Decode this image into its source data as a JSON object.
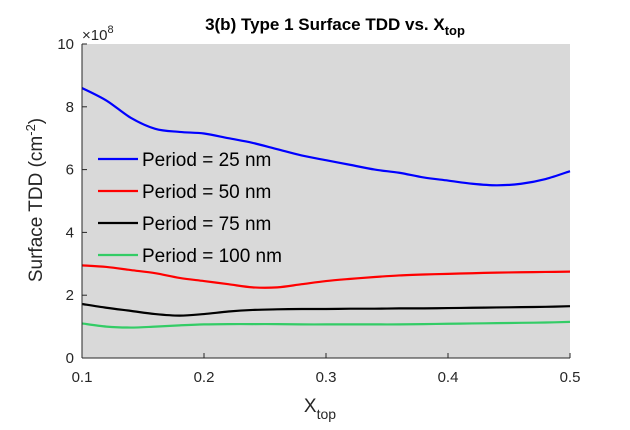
{
  "chart_data": {
    "type": "line",
    "title_main": "3(b) Type 1 Surface TDD vs. X",
    "title_sub": "top",
    "xlabel_main": "X",
    "xlabel_sub": "top",
    "ylabel_main": "Surface TDD (cm",
    "ylabel_sup": "-2",
    "ylabel_close": ")",
    "y_exponent_prefix": "×10",
    "y_exponent_power": "8",
    "xlim": [
      0.1,
      0.5
    ],
    "ylim": [
      0,
      10
    ],
    "xticks": [
      "0.1",
      "0.2",
      "0.3",
      "0.4",
      "0.5"
    ],
    "yticks": [
      "0",
      "2",
      "4",
      "6",
      "8",
      "10"
    ],
    "background": "#d9d9d9",
    "grid": false,
    "legend_position": "middle-left",
    "series": [
      {
        "name": "Period = 25 nm",
        "color": "#0000ff",
        "x": [
          0.1,
          0.12,
          0.14,
          0.16,
          0.18,
          0.2,
          0.22,
          0.24,
          0.26,
          0.28,
          0.3,
          0.32,
          0.34,
          0.36,
          0.38,
          0.4,
          0.42,
          0.44,
          0.46,
          0.48,
          0.5
        ],
        "y": [
          8.6,
          8.2,
          7.65,
          7.3,
          7.2,
          7.15,
          7.0,
          6.85,
          6.65,
          6.45,
          6.3,
          6.15,
          6.0,
          5.9,
          5.75,
          5.65,
          5.55,
          5.5,
          5.55,
          5.7,
          5.95
        ]
      },
      {
        "name": "Period = 50 nm",
        "color": "#ff0000",
        "x": [
          0.1,
          0.12,
          0.14,
          0.16,
          0.18,
          0.2,
          0.22,
          0.24,
          0.26,
          0.28,
          0.3,
          0.32,
          0.34,
          0.36,
          0.38,
          0.4,
          0.42,
          0.44,
          0.46,
          0.48,
          0.5
        ],
        "y": [
          2.95,
          2.9,
          2.8,
          2.7,
          2.55,
          2.45,
          2.35,
          2.25,
          2.25,
          2.35,
          2.45,
          2.52,
          2.58,
          2.63,
          2.66,
          2.68,
          2.7,
          2.72,
          2.73,
          2.74,
          2.75
        ]
      },
      {
        "name": "Period = 75 nm",
        "color": "#000000",
        "x": [
          0.1,
          0.12,
          0.14,
          0.16,
          0.18,
          0.2,
          0.22,
          0.24,
          0.26,
          0.28,
          0.3,
          0.32,
          0.34,
          0.36,
          0.38,
          0.4,
          0.42,
          0.44,
          0.46,
          0.48,
          0.5
        ],
        "y": [
          1.72,
          1.6,
          1.5,
          1.4,
          1.35,
          1.4,
          1.48,
          1.53,
          1.55,
          1.56,
          1.56,
          1.57,
          1.57,
          1.58,
          1.58,
          1.59,
          1.6,
          1.61,
          1.62,
          1.63,
          1.65
        ]
      },
      {
        "name": "Period = 100 nm",
        "color": "#33cc66",
        "x": [
          0.1,
          0.12,
          0.14,
          0.16,
          0.18,
          0.2,
          0.22,
          0.24,
          0.26,
          0.28,
          0.3,
          0.32,
          0.34,
          0.36,
          0.38,
          0.4,
          0.42,
          0.44,
          0.46,
          0.48,
          0.5
        ],
        "y": [
          1.1,
          1.0,
          0.97,
          1.0,
          1.04,
          1.07,
          1.08,
          1.08,
          1.08,
          1.07,
          1.07,
          1.07,
          1.07,
          1.07,
          1.08,
          1.09,
          1.1,
          1.11,
          1.12,
          1.13,
          1.15
        ]
      }
    ]
  }
}
